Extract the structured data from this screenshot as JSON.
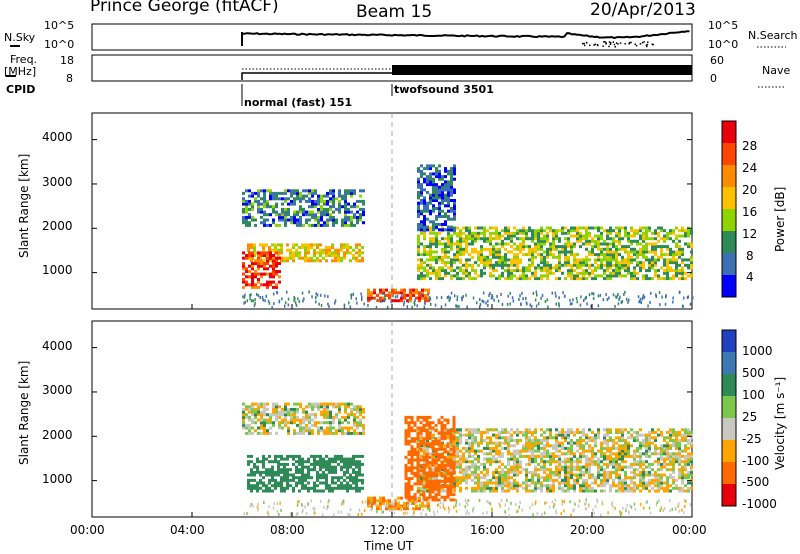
{
  "header": {
    "station": "Prince George (fitACF)",
    "beam": "Beam 15",
    "date": "20/Apr/2013"
  },
  "panels": {
    "nsky_label": "N.Sky",
    "nsearch_label": "N.Search",
    "nsky_ticks": [
      "10^5",
      "10^0"
    ],
    "nsearch_ticks": [
      "10^5",
      "10^0"
    ],
    "freq_label_1": "Freq.",
    "freq_label_2": "[MHz]",
    "freq_ticks": [
      "18",
      "8"
    ],
    "nave_label": "Nave",
    "nave_ticks": [
      "60",
      "0"
    ],
    "cpid_label": "CPID",
    "cpid_segments": [
      "normal (fast) 151",
      "twofsound 3501"
    ]
  },
  "chart_data": [
    {
      "type": "heatmap",
      "name": "power",
      "ylabel": "Slant Range [km]",
      "y_ticks": [
        "1000",
        "2000",
        "3000",
        "4000"
      ],
      "ylim": [
        180,
        4600
      ],
      "x_ticks": [
        "00:00",
        "04:00",
        "08:00",
        "12:00",
        "16:00",
        "20:00",
        "00:00"
      ],
      "colorbar_label": "Power [dB]",
      "colorbar_ticks": [
        "28",
        "24",
        "20",
        "16",
        "12",
        "8",
        "4"
      ],
      "colors": [
        "#e8000b",
        "#ff4500",
        "#ff8c00",
        "#ffc000",
        "#8fd400",
        "#2e8b57",
        "#3d6fb5",
        "#0000ff"
      ],
      "regions": [
        {
          "t_start": 6.0,
          "t_end": 10.8,
          "r_min": 2100,
          "r_max": 2900,
          "value": 8
        },
        {
          "t_start": 6.2,
          "t_end": 10.8,
          "r_min": 1300,
          "r_max": 1700,
          "value": 18
        },
        {
          "t_start": 6.0,
          "t_end": 7.5,
          "r_min": 700,
          "r_max": 1500,
          "value": 28
        },
        {
          "t_start": 11.0,
          "t_end": 13.5,
          "r_min": 400,
          "r_max": 650,
          "value": 26
        },
        {
          "t_start": 13.0,
          "t_end": 24.0,
          "r_min": 900,
          "r_max": 2100,
          "value": 14
        },
        {
          "t_start": 13.0,
          "t_end": 14.5,
          "r_min": 2000,
          "r_max": 3500,
          "value": 6
        }
      ]
    },
    {
      "type": "heatmap",
      "name": "velocity",
      "ylabel": "Slant Range [km]",
      "y_ticks": [
        "1000",
        "2000",
        "3000",
        "4000"
      ],
      "ylim": [
        180,
        4600
      ],
      "x_ticks": [
        "00:00",
        "04:00",
        "08:00",
        "12:00",
        "16:00",
        "20:00",
        "00:00"
      ],
      "xlabel": "Time UT",
      "colorbar_label": "Velocity [m s⁻¹]",
      "colorbar_ticks": [
        "1000",
        "500",
        "100",
        "25",
        "-25",
        "-100",
        "-500",
        "-1000"
      ],
      "colors": [
        "#2040c0",
        "#3d7ab5",
        "#2e8b57",
        "#7cc84c",
        "#c8c8c0",
        "#ffa500",
        "#ff6a00",
        "#e8000b"
      ],
      "regions": [
        {
          "t_start": 6.0,
          "t_end": 10.8,
          "r_min": 2100,
          "r_max": 2800,
          "value": 0
        },
        {
          "t_start": 6.2,
          "t_end": 10.8,
          "r_min": 800,
          "r_max": 1600,
          "value": 200
        },
        {
          "t_start": 11.0,
          "t_end": 13.5,
          "r_min": 400,
          "r_max": 700,
          "value": -100
        },
        {
          "t_start": 13.0,
          "t_end": 24.0,
          "r_min": 800,
          "r_max": 2200,
          "value": 0
        },
        {
          "t_start": 12.5,
          "t_end": 14.5,
          "r_min": 600,
          "r_max": 2500,
          "value": -300
        }
      ]
    }
  ]
}
